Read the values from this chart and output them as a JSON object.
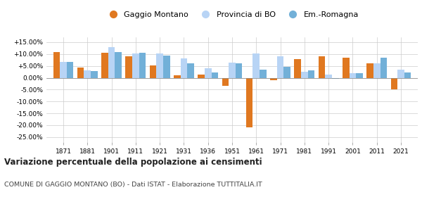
{
  "years": [
    1871,
    1881,
    1901,
    1911,
    1921,
    1931,
    1936,
    1951,
    1961,
    1971,
    1981,
    1991,
    2001,
    2011,
    2021
  ],
  "gaggio": [
    10.7,
    4.3,
    10.6,
    9.0,
    5.3,
    1.0,
    1.2,
    -3.5,
    -21.0,
    -1.0,
    7.8,
    9.2,
    8.6,
    6.2,
    -5.0
  ],
  "provincia": [
    6.8,
    3.1,
    12.8,
    10.2,
    10.2,
    8.3,
    3.9,
    6.5,
    10.3,
    9.0,
    2.6,
    1.3,
    1.8,
    6.0,
    3.3
  ],
  "emromagna": [
    6.8,
    2.7,
    10.8,
    10.4,
    9.4,
    6.1,
    2.2,
    6.1,
    3.5,
    4.6,
    3.1,
    -0.3,
    1.8,
    8.4,
    2.2
  ],
  "color_gaggio": "#E07820",
  "color_provincia": "#b8d4f5",
  "color_emromagna": "#72b0d8",
  "title": "Variazione percentuale della popolazione ai censimenti",
  "subtitle": "COMUNE DI GAGGIO MONTANO (BO) - Dati ISTAT - Elaborazione TUTTITALIA.IT",
  "ylim": [
    -27,
    17
  ],
  "yticks": [
    -25,
    -20,
    -15,
    -10,
    -5,
    0,
    5,
    10,
    15
  ],
  "ytick_labels": [
    "-25.00%",
    "-20.00%",
    "-15.00%",
    "-10.00%",
    "-5.00%",
    "0.00%",
    "+5.00%",
    "+10.00%",
    "+15.00%"
  ],
  "legend_labels": [
    "Gaggio Montano",
    "Provincia di BO",
    "Em.-Romagna"
  ],
  "bar_width": 0.28,
  "background_color": "#ffffff",
  "grid_color": "#cccccc"
}
